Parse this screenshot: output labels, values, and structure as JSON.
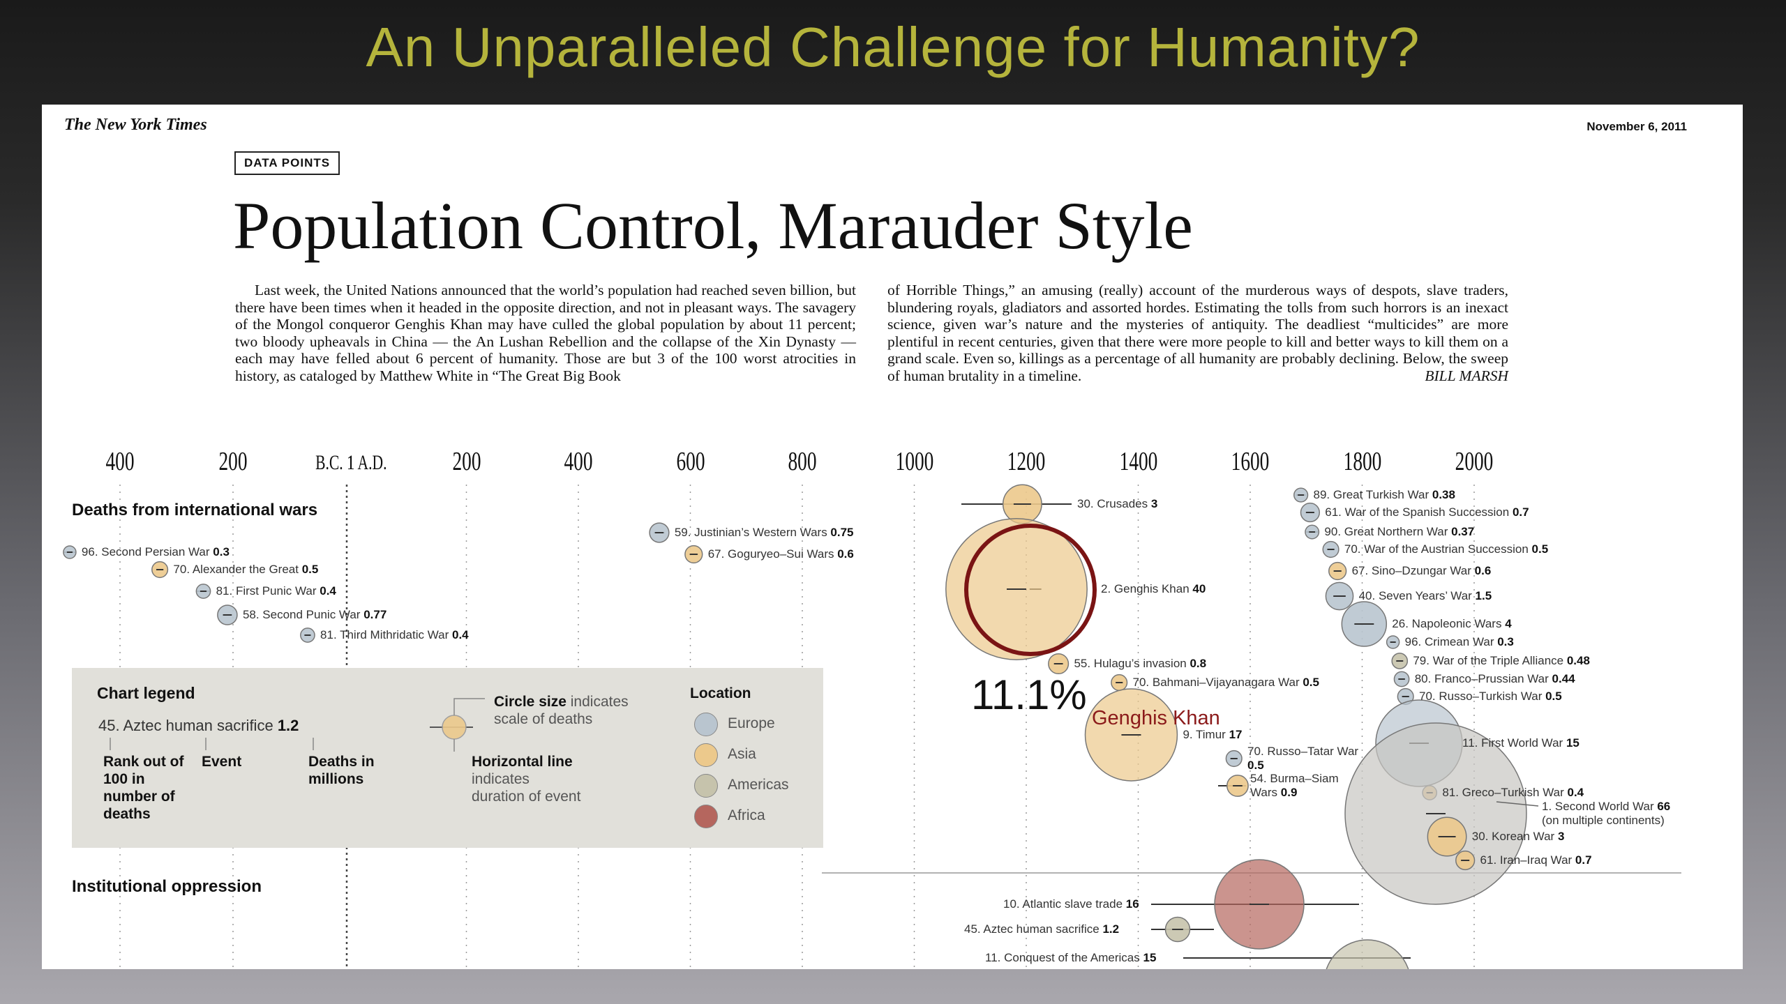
{
  "slide_title": "An Unparalleled Challenge for Humanity?",
  "masthead": "The New York Times",
  "date": "November 6, 2011",
  "badge": "DATA POINTS",
  "headline": "Population Control, Marauder Style",
  "intro_col1": "Last week, the United Nations announced that the world’s population had reached seven billion, but there have been times when it headed in the opposite direction, and not in pleasant ways. The savagery of the Mongol conqueror Genghis Khan may have culled the global population by about 11 percent; two bloody upheavals in China — the An Lushan Rebellion and the collapse of the Xin Dynasty — each may have felled about 6 percent of humanity. Those are but 3 of the 100 worst atrocities in history, as cataloged by Matthew White in “The Great Big Book",
  "intro_col2": "of Horrible Things,” an amusing (really) account of the murderous ways of despots, slave traders, blundering royals, gladiators and assorted hordes. Estimating the tolls from such horrors is an inexact science, given war’s nature and the mysteries of antiquity. The deadliest “multicides” are more plentiful in recent centuries, given that there were more people to kill and better ways to kill them on a grand scale. Even so, killings as a percentage of all humanity are probably declining. Below, the sweep of human brutality in a timeline.",
  "byline": "BILL MARSH",
  "callout": {
    "value": "11.1%",
    "name": "Genghis Khan"
  },
  "colors": {
    "title": "#b5b43c",
    "Europe": "#b9c5cf",
    "Asia": "#ecc98c",
    "Americas": "#c6c3ac",
    "Africa": "#b5665e",
    "callout_ring": "#7a1414"
  },
  "legend": {
    "title": "Chart legend",
    "example": "45. Aztec human sacrifice",
    "example_value": "1.2",
    "rank_label": "Rank out of 100 in number of deaths",
    "event_label": "Event",
    "deaths_label": "Deaths in millions",
    "circle_size_bold": "Circle size",
    "circle_size_rest": "indicates scale of deaths",
    "line_bold": "Horizontal line",
    "line_rest": "indicates duration of event",
    "location_title": "Location",
    "locations": [
      "Europe",
      "Asia",
      "Americas",
      "Africa"
    ]
  },
  "chart_data": {
    "type": "scatter",
    "title": "",
    "xlabel": "",
    "ylabel": "",
    "x_ticks": [
      "400",
      "200",
      "B.C. 1",
      "1 A.D.",
      "200",
      "400",
      "600",
      "800",
      "1000",
      "1200",
      "1400",
      "1600",
      "1800",
      "2000"
    ],
    "size_unit": "Deaths in millions",
    "sections": [
      {
        "name": "Deaths from international wars",
        "events": [
          {
            "rank": 96,
            "name": "Second Persian War",
            "deaths": 0.3,
            "start": -499,
            "end": -479,
            "location": "Europe"
          },
          {
            "rank": 70,
            "name": "Alexander the Great",
            "deaths": 0.5,
            "start": -336,
            "end": -323,
            "location": "Asia"
          },
          {
            "rank": 81,
            "name": "First Punic War",
            "deaths": 0.4,
            "start": -264,
            "end": -241,
            "location": "Europe"
          },
          {
            "rank": 58,
            "name": "Second Punic War",
            "deaths": 0.77,
            "start": -218,
            "end": -202,
            "location": "Europe"
          },
          {
            "rank": 81,
            "name": "Third Mithridatic War",
            "deaths": 0.4,
            "start": -73,
            "end": -63,
            "location": "Europe"
          },
          {
            "rank": 59,
            "name": "Justinian’s Western Wars",
            "deaths": 0.75,
            "start": 535,
            "end": 554,
            "location": "Europe"
          },
          {
            "rank": 67,
            "name": "Goguryeo–Sui Wars",
            "deaths": 0.6,
            "start": 598,
            "end": 614,
            "location": "Asia"
          },
          {
            "rank": 30,
            "name": "Crusades",
            "deaths": 3,
            "start": 1095,
            "end": 1291,
            "location": "Asia"
          },
          {
            "rank": 2,
            "name": "Genghis Khan",
            "deaths": 40,
            "start": 1206,
            "end": 1227,
            "location": "Asia"
          },
          {
            "rank": 55,
            "name": "Hulagu’s invasion",
            "deaths": 0.8,
            "start": 1255,
            "end": 1260,
            "location": "Asia"
          },
          {
            "rank": 70,
            "name": "Bahmani–Vijayanagara War",
            "deaths": 0.5,
            "start": 1366,
            "end": 1366,
            "location": "Asia"
          },
          {
            "rank": 9,
            "name": "Timur",
            "deaths": 17,
            "start": 1370,
            "end": 1405,
            "location": "Asia"
          },
          {
            "rank": 70,
            "name": "Russo–Tatar War",
            "deaths": 0.5,
            "start": 1570,
            "end": 1572,
            "location": "Europe"
          },
          {
            "rank": 54,
            "name": "Burma–Siam Wars",
            "deaths": 0.9,
            "start": 1550,
            "end": 1605,
            "location": "Asia"
          },
          {
            "rank": 89,
            "name": "Great Turkish War",
            "deaths": 0.38,
            "start": 1682,
            "end": 1699,
            "location": "Europe"
          },
          {
            "rank": 61,
            "name": "War of the Spanish Succession",
            "deaths": 0.7,
            "start": 1701,
            "end": 1713,
            "location": "Europe"
          },
          {
            "rank": 90,
            "name": "Great Northern War",
            "deaths": 0.37,
            "start": 1700,
            "end": 1721,
            "location": "Europe"
          },
          {
            "rank": 70,
            "name": "War of the Austrian Succession",
            "deaths": 0.5,
            "start": 1740,
            "end": 1748,
            "location": "Europe"
          },
          {
            "rank": 67,
            "name": "Sino–Dzungar War",
            "deaths": 0.6,
            "start": 1755,
            "end": 1757,
            "location": "Asia"
          },
          {
            "rank": 40,
            "name": "Seven Years’ War",
            "deaths": 1.5,
            "start": 1756,
            "end": 1763,
            "location": "Europe"
          },
          {
            "rank": 26,
            "name": "Napoleonic Wars",
            "deaths": 4,
            "start": 1792,
            "end": 1815,
            "location": "Europe"
          },
          {
            "rank": 96,
            "name": "Crimean War",
            "deaths": 0.3,
            "start": 1854,
            "end": 1856,
            "location": "Europe"
          },
          {
            "rank": 79,
            "name": "War of the Triple Alliance",
            "deaths": 0.48,
            "start": 1864,
            "end": 1870,
            "location": "Americas"
          },
          {
            "rank": 80,
            "name": "Franco–Prussian War",
            "deaths": 0.44,
            "start": 1870,
            "end": 1871,
            "location": "Europe"
          },
          {
            "rank": 70,
            "name": "Russo–Turkish War",
            "deaths": 0.5,
            "start": 1877,
            "end": 1878,
            "location": "Europe"
          },
          {
            "rank": 11,
            "name": "First World War",
            "deaths": 15,
            "start": 1914,
            "end": 1918,
            "location": "Europe"
          },
          {
            "rank": 81,
            "name": "Greco–Turkish War",
            "deaths": 0.4,
            "start": 1919,
            "end": 1922,
            "location": "Asia"
          },
          {
            "rank": 1,
            "name": "Second World War",
            "deaths": 66,
            "start": 1939,
            "end": 1945,
            "location": "multiple",
            "note": "(on multiple continents)"
          },
          {
            "rank": 30,
            "name": "Korean War",
            "deaths": 3,
            "start": 1950,
            "end": 1953,
            "location": "Asia"
          },
          {
            "rank": 61,
            "name": "Iran–Iraq War",
            "deaths": 0.7,
            "start": 1980,
            "end": 1988,
            "location": "Asia"
          }
        ]
      },
      {
        "name": "Institutional oppression",
        "events": [
          {
            "rank": 10,
            "name": "Atlantic slave trade",
            "deaths": 16,
            "start": 1452,
            "end": 1807,
            "location": "Africa"
          },
          {
            "rank": 45,
            "name": "Aztec human sacrifice",
            "deaths": 1.2,
            "start": 1440,
            "end": 1521,
            "location": "Americas"
          },
          {
            "rank": 11,
            "name": "Conquest of the Americas",
            "deaths": 15,
            "start": 1492,
            "end": 1900,
            "location": "Americas"
          }
        ]
      }
    ]
  }
}
